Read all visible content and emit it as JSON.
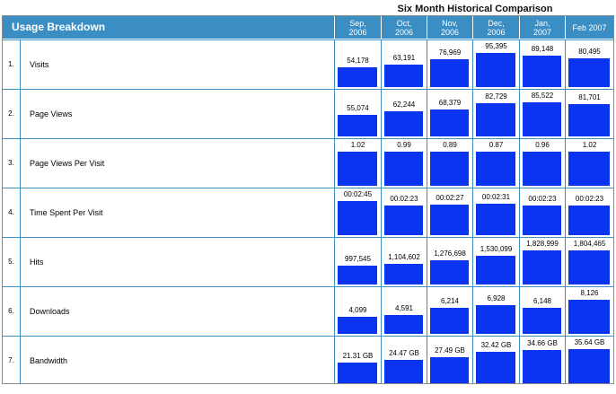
{
  "comparison_title": "Six Month Historical Comparison",
  "header": {
    "title": "Usage Breakdown",
    "months": [
      "Sep,\n2006",
      "Oct,\n2006",
      "Nov,\n2006",
      "Dec,\n2006",
      "Jan,\n2007",
      "Feb 2007"
    ]
  },
  "colors": {
    "header_bg": "#3a8ec4",
    "bar": "#0b34f0",
    "grid": "#3a8ec4"
  },
  "rows": [
    {
      "num": "1.",
      "label": "Visits",
      "values": [
        "54,178",
        "63,191",
        "76,969",
        "95,395",
        "89,148",
        "80,495"
      ],
      "levels": [
        0.57,
        0.66,
        0.81,
        1.0,
        0.93,
        0.84
      ]
    },
    {
      "num": "2.",
      "label": "Page Views",
      "values": [
        "55,074",
        "62,244",
        "68,379",
        "82,729",
        "85,522",
        "81,701"
      ],
      "levels": [
        0.64,
        0.73,
        0.8,
        0.97,
        1.0,
        0.96
      ]
    },
    {
      "num": "3.",
      "label": "Page Views Per Visit",
      "values": [
        "1.02",
        "0.99",
        "0.89",
        "0.87",
        "0.96",
        "1.02"
      ],
      "levels": [
        1.0,
        1.0,
        1.0,
        1.0,
        1.0,
        1.0
      ]
    },
    {
      "num": "4.",
      "label": "Time Spent Per Visit",
      "values": [
        "00:02:45",
        "00:02:23",
        "00:02:27",
        "00:02:31",
        "00:02:23",
        "00:02:23"
      ],
      "levels": [
        1.0,
        0.87,
        0.89,
        0.92,
        0.87,
        0.87
      ]
    },
    {
      "num": "5.",
      "label": "Hits",
      "values": [
        "997,545",
        "1,104,602",
        "1,276,698",
        "1,530,099",
        "1,828,999",
        "1,804,465"
      ],
      "levels": [
        0.55,
        0.6,
        0.7,
        0.84,
        1.0,
        0.99
      ]
    },
    {
      "num": "6.",
      "label": "Downloads",
      "values": [
        "4,099",
        "4,591",
        "6,214",
        "6,928",
        "6,148",
        "8,126"
      ],
      "levels": [
        0.5,
        0.56,
        0.76,
        0.85,
        0.76,
        1.0
      ]
    },
    {
      "num": "7.",
      "label": "Bandwidth",
      "values": [
        "21.31 GB",
        "24.47 GB",
        "27.49 GB",
        "32.42 GB",
        "34.66 GB",
        "35.64 GB"
      ],
      "levels": [
        0.6,
        0.69,
        0.77,
        0.91,
        0.97,
        1.0
      ]
    }
  ]
}
